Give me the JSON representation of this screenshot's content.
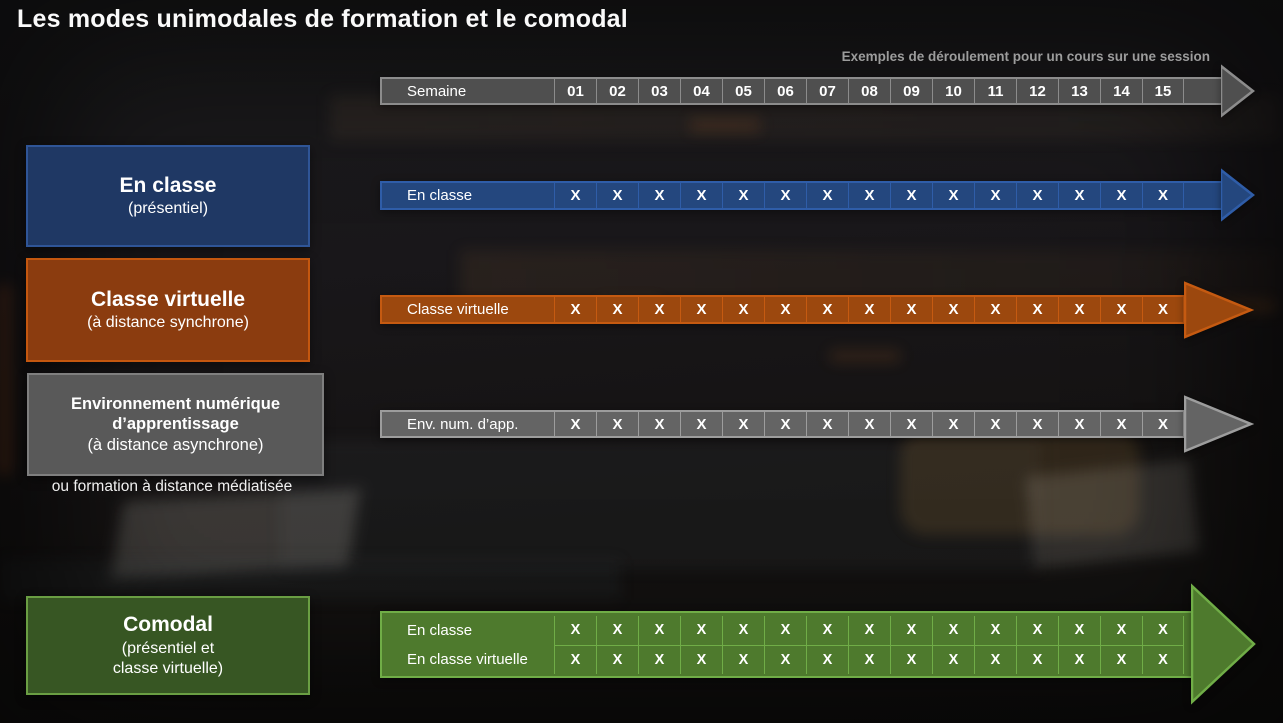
{
  "slide": {
    "title": "Les modes unimodales de formation et le comodal",
    "subtitle": "Exemples de déroulement pour un cours sur une session"
  },
  "header": {
    "label": "Semaine",
    "weeks": [
      "01",
      "02",
      "03",
      "04",
      "05",
      "06",
      "07",
      "08",
      "09",
      "10",
      "11",
      "12",
      "13",
      "14",
      "15"
    ]
  },
  "modes": [
    {
      "id": "en-classe",
      "title": "En classe",
      "subtitle": "(présentiel)"
    },
    {
      "id": "classe-virtuelle",
      "title": "Classe virtuelle",
      "subtitle": "(à distance synchrone)"
    },
    {
      "id": "env-num-app",
      "title": "Environnement numérique d’apprentissage",
      "subtitle": "(à distance asynchrone)",
      "note": "ou formation à distance médiatisée"
    },
    {
      "id": "comodal",
      "title": "Comodal",
      "subtitle": "(présentiel et\nclasse virtuelle)"
    }
  ],
  "rows": [
    {
      "id": "en-classe",
      "label": "En classe",
      "marks": [
        "X",
        "X",
        "X",
        "X",
        "X",
        "X",
        "X",
        "X",
        "X",
        "X",
        "X",
        "X",
        "X",
        "X",
        "X"
      ]
    },
    {
      "id": "classe-virtuelle",
      "label": "Classe virtuelle",
      "marks": [
        "X",
        "X",
        "X",
        "X",
        "X",
        "X",
        "X",
        "X",
        "X",
        "X",
        "X",
        "X",
        "X",
        "X",
        "X"
      ]
    },
    {
      "id": "env-num-app",
      "label": "Env. num. d’app.",
      "marks": [
        "X",
        "X",
        "X",
        "X",
        "X",
        "X",
        "X",
        "X",
        "X",
        "X",
        "X",
        "X",
        "X",
        "X",
        "X"
      ]
    }
  ],
  "comodal_arrow": {
    "rows": [
      {
        "label": "En classe",
        "marks": [
          "X",
          "X",
          "X",
          "X",
          "X",
          "X",
          "X",
          "X",
          "X",
          "X",
          "X",
          "X",
          "X",
          "X",
          "X"
        ]
      },
      {
        "label": "En classe virtuelle",
        "marks": [
          "X",
          "X",
          "X",
          "X",
          "X",
          "X",
          "X",
          "X",
          "X",
          "X",
          "X",
          "X",
          "X",
          "X",
          "X"
        ]
      }
    ]
  },
  "palette": {
    "blue_fill": "#24477E",
    "blue_accent": "#2F5DA8",
    "blue_box": "#1F3864",
    "blue_box_accent": "#2F5597",
    "orange_fill": "#9C480E",
    "orange_accent": "#C55A11",
    "orange_box": "#8B3C0F",
    "orange_box_accent": "#C4570F",
    "gray_fill": "#646464",
    "gray_accent": "#9D9D9D",
    "gray_box": "#595959",
    "gray_box_accent": "#7F7F7F",
    "header_fill": "#4F4F4F",
    "header_accent": "#8C8C8C",
    "green_fill": "#4E7A2D",
    "green_accent": "#70AD47",
    "green_box": "#375623",
    "green_box_accent": "#6A9E43",
    "subtitle_color": "#9C9C9C",
    "text_color": "#FFFFFF"
  }
}
